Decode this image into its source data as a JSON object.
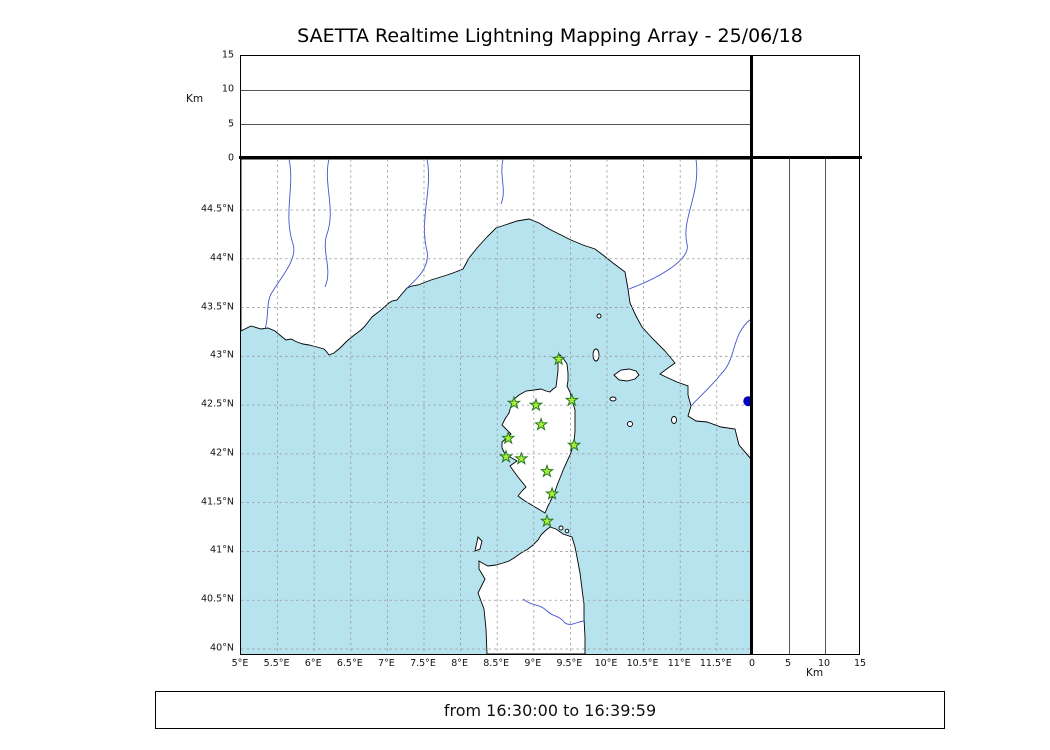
{
  "title": "SAETTA Realtime Lightning Mapping Array - 25/06/18",
  "time_bar": {
    "text": "from 16:30:00 to 16:39:59"
  },
  "colors": {
    "sea": "#b6e3ee",
    "land": "#ffffff",
    "coast": "#000000",
    "river": "#4455cc",
    "grid": "#999999",
    "station_fill": "#aaee33",
    "station_stroke": "#227722",
    "event_dot": "#0000bb"
  },
  "map_panel": {
    "lon_ticks": [
      "5°E",
      "5.5°E",
      "6°E",
      "6.5°E",
      "7°E",
      "7.5°E",
      "8°E",
      "8.5°E",
      "9°E",
      "9.5°E",
      "10°E",
      "10.5°E",
      "11°E",
      "11.5°E"
    ],
    "lat_ticks": [
      "40°N",
      "40.5°N",
      "41°N",
      "41.5°N",
      "42°N",
      "42.5°N",
      "43°N",
      "43.5°N",
      "44°N",
      "44.5°N"
    ],
    "stations": [
      {
        "lon": 9.34,
        "lat": 42.97
      },
      {
        "lon": 8.73,
        "lat": 42.52
      },
      {
        "lon": 9.03,
        "lat": 42.5
      },
      {
        "lon": 9.52,
        "lat": 42.55
      },
      {
        "lon": 9.1,
        "lat": 42.3
      },
      {
        "lon": 8.65,
        "lat": 42.16
      },
      {
        "lon": 9.55,
        "lat": 42.09
      },
      {
        "lon": 8.62,
        "lat": 41.97
      },
      {
        "lon": 8.83,
        "lat": 41.95
      },
      {
        "lon": 9.18,
        "lat": 41.82
      },
      {
        "lon": 9.25,
        "lat": 41.59
      },
      {
        "lon": 9.18,
        "lat": 41.31
      }
    ],
    "event_marker": {
      "lon": 11.93,
      "lat": 42.54
    }
  },
  "altitude_top": {
    "axis_label": "Km",
    "ticks": [
      "0",
      "5",
      "10",
      "15"
    ]
  },
  "altitude_right": {
    "axis_label": "Km",
    "ticks": [
      "0",
      "5",
      "10",
      "15"
    ]
  }
}
